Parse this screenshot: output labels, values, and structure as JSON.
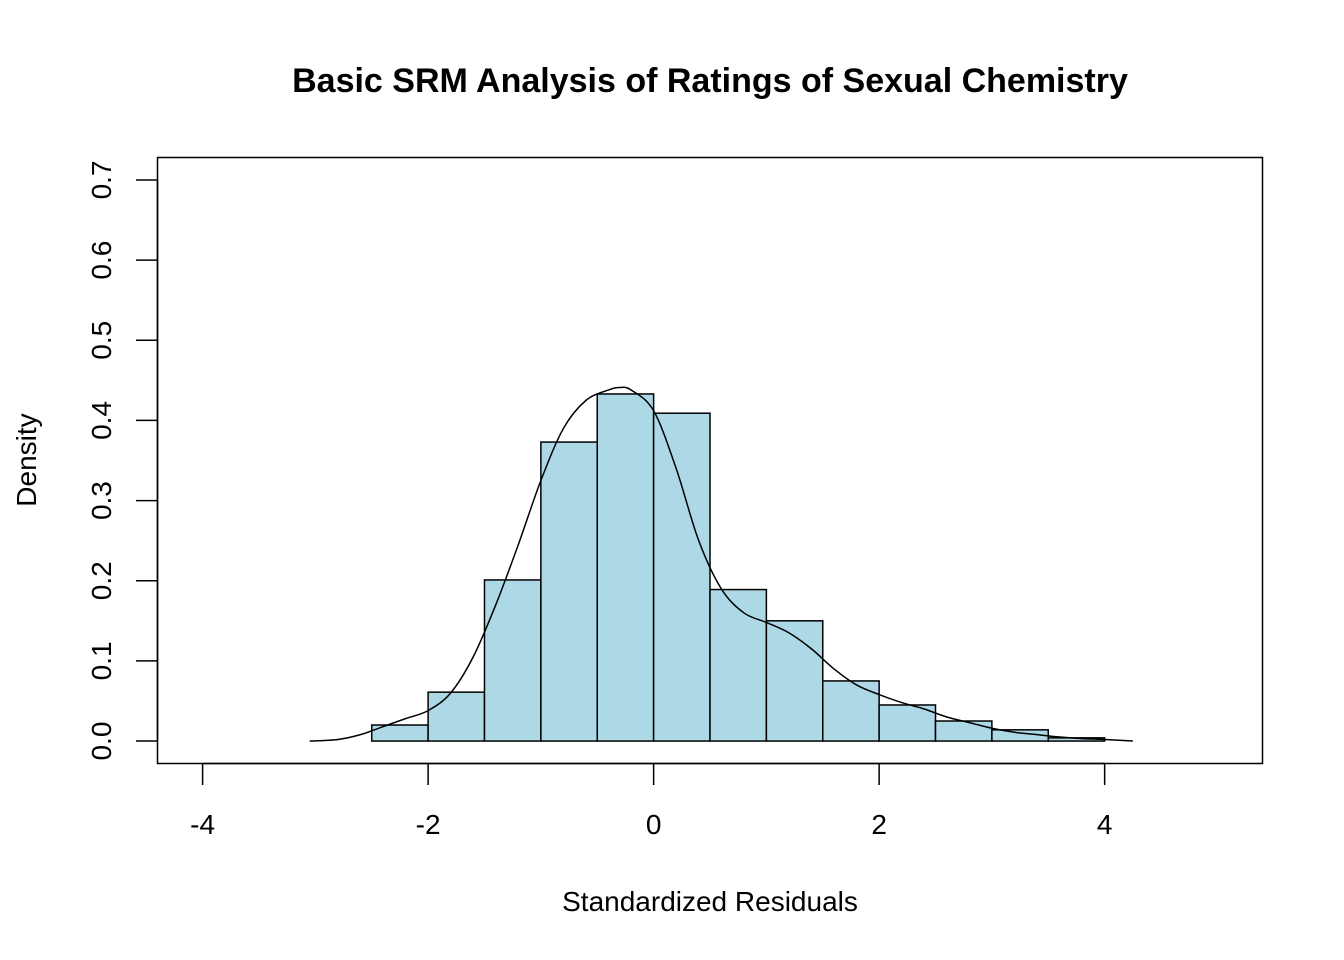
{
  "chart_data": {
    "type": "histogram",
    "title": "Basic SRM Analysis of Ratings of Sexual Chemistry",
    "xlabel": "Standardized Residuals",
    "ylabel": "Density",
    "xlim": [
      -4.4,
      5.4
    ],
    "ylim": [
      -0.028,
      0.728
    ],
    "x_ticks": [
      -4,
      -2,
      0,
      2,
      4
    ],
    "x_tick_labels": [
      "-4",
      "-2",
      "0",
      "2",
      "4"
    ],
    "y_ticks": [
      0.0,
      0.1,
      0.2,
      0.3,
      0.4,
      0.5,
      0.6,
      0.7
    ],
    "y_tick_labels": [
      "0.0",
      "0.1",
      "0.2",
      "0.3",
      "0.4",
      "0.5",
      "0.6",
      "0.7"
    ],
    "bar_color": "#add8e6",
    "bins": [
      {
        "x0": -2.5,
        "x1": -2.0,
        "density": 0.02
      },
      {
        "x0": -2.0,
        "x1": -1.5,
        "density": 0.061
      },
      {
        "x0": -1.5,
        "x1": -1.0,
        "density": 0.201
      },
      {
        "x0": -1.0,
        "x1": -0.5,
        "density": 0.373
      },
      {
        "x0": -0.5,
        "x1": 0.0,
        "density": 0.433
      },
      {
        "x0": 0.0,
        "x1": 0.5,
        "density": 0.409
      },
      {
        "x0": 0.5,
        "x1": 1.0,
        "density": 0.189
      },
      {
        "x0": 1.0,
        "x1": 1.5,
        "density": 0.15
      },
      {
        "x0": 1.5,
        "x1": 2.0,
        "density": 0.075
      },
      {
        "x0": 2.0,
        "x1": 2.5,
        "density": 0.045
      },
      {
        "x0": 2.5,
        "x1": 3.0,
        "density": 0.025
      },
      {
        "x0": 3.0,
        "x1": 3.5,
        "density": 0.014
      },
      {
        "x0": 3.5,
        "x1": 4.0,
        "density": 0.004
      }
    ],
    "density_curve": {
      "x": [
        -3.05,
        -2.8,
        -2.6,
        -2.4,
        -2.2,
        -2.0,
        -1.8,
        -1.6,
        -1.4,
        -1.2,
        -1.0,
        -0.8,
        -0.6,
        -0.4,
        -0.3,
        -0.2,
        0.0,
        0.2,
        0.4,
        0.6,
        0.8,
        1.0,
        1.2,
        1.4,
        1.6,
        1.8,
        2.0,
        2.2,
        2.4,
        2.6,
        2.8,
        3.0,
        3.2,
        3.4,
        3.6,
        3.8,
        4.0,
        4.25
      ],
      "y": [
        0.0,
        0.002,
        0.008,
        0.018,
        0.028,
        0.038,
        0.06,
        0.105,
        0.17,
        0.245,
        0.325,
        0.39,
        0.425,
        0.438,
        0.441,
        0.438,
        0.412,
        0.34,
        0.25,
        0.19,
        0.16,
        0.148,
        0.135,
        0.115,
        0.09,
        0.07,
        0.058,
        0.048,
        0.04,
        0.03,
        0.023,
        0.016,
        0.011,
        0.008,
        0.005,
        0.003,
        0.002,
        0.0
      ]
    }
  }
}
